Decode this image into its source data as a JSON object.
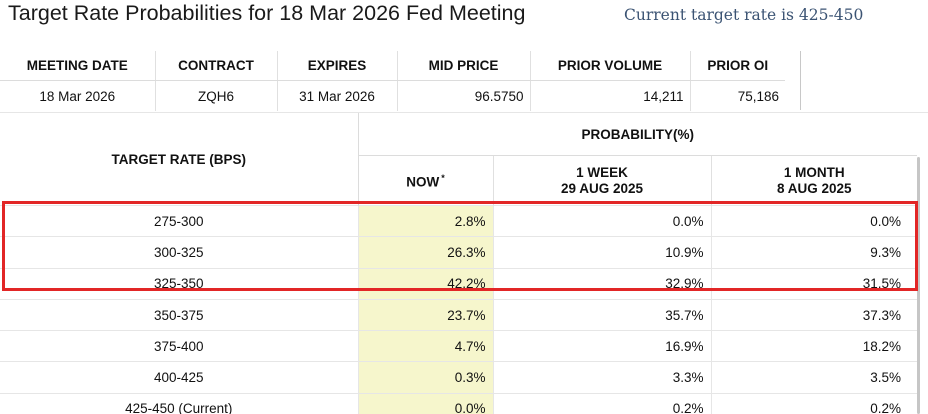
{
  "title": "Target Rate Probabilities for 18 Mar 2026 Fed Meeting",
  "current_rate": "Current target rate is 425-450",
  "info_table": {
    "headers": [
      "MEETING DATE",
      "CONTRACT",
      "EXPIRES",
      "MID PRICE",
      "PRIOR VOLUME",
      "PRIOR OI"
    ],
    "row": [
      "18 Mar 2026",
      "ZQH6",
      "31 Mar 2026",
      "96.5750",
      "14,211",
      "75,186"
    ]
  },
  "prob_table": {
    "target_rate_header": "TARGET RATE (BPS)",
    "probability_header": "PROBABILITY(%)",
    "now_header": "NOW",
    "now_marker": "*",
    "week_header": "1 WEEK",
    "week_date": "29 AUG 2025",
    "month_header": "1 MONTH",
    "month_date": "8 AUG 2025",
    "rows": [
      {
        "rate": "275-300",
        "now": "2.8%",
        "week": "0.0%",
        "month": "0.0%"
      },
      {
        "rate": "300-325",
        "now": "26.3%",
        "week": "10.9%",
        "month": "9.3%"
      },
      {
        "rate": "325-350",
        "now": "42.2%",
        "week": "32.9%",
        "month": "31.5%"
      },
      {
        "rate": "350-375",
        "now": "23.7%",
        "week": "35.7%",
        "month": "37.3%"
      },
      {
        "rate": "375-400",
        "now": "4.7%",
        "week": "16.9%",
        "month": "18.2%"
      },
      {
        "rate": "400-425",
        "now": "0.3%",
        "week": "3.3%",
        "month": "3.5%"
      },
      {
        "rate": "425-450 (Current)",
        "now": "0.0%",
        "week": "0.2%",
        "month": "0.2%"
      }
    ]
  },
  "colors": {
    "now_column_bg": "#f6f6cc",
    "highlight_border": "#e22626",
    "current_rate_text": "#3b5373"
  }
}
